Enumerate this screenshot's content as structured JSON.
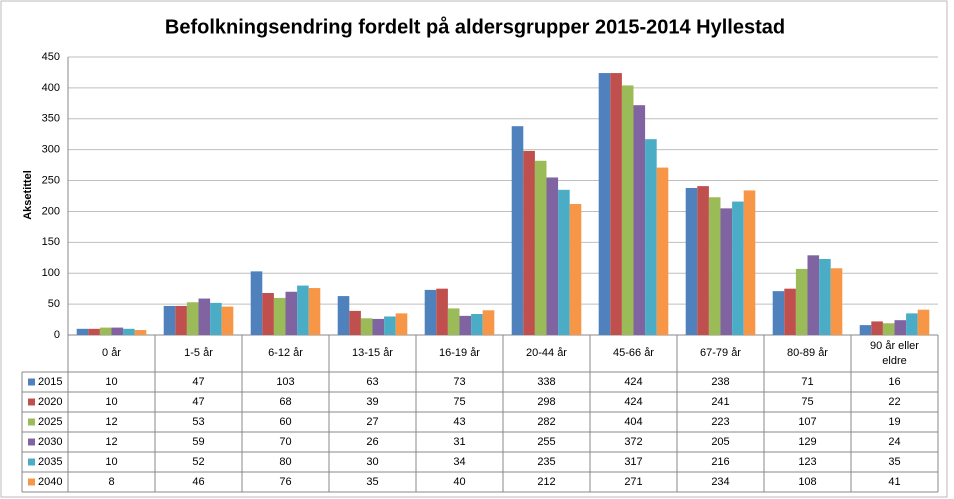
{
  "chart_data": {
    "type": "bar",
    "title": "Befolkningsendring fordelt på aldersgrupper 2015-2014 Hyllestad",
    "y_label": "Aksetittel",
    "categories": [
      "0 år",
      "1-5 år",
      "6-12 år",
      "13-15 år",
      "16-19 år",
      "20-44 år",
      "45-66 år",
      "67-79 år",
      "80-89 år",
      "90 år eller eldre"
    ],
    "series": [
      {
        "name": "2015",
        "color": "#4f81bd",
        "values": [
          10,
          47,
          103,
          63,
          73,
          338,
          424,
          238,
          71,
          16
        ]
      },
      {
        "name": "2020",
        "color": "#c0504d",
        "values": [
          10,
          47,
          68,
          39,
          75,
          298,
          424,
          241,
          75,
          22
        ]
      },
      {
        "name": "2025",
        "color": "#9bbb59",
        "values": [
          12,
          53,
          60,
          27,
          43,
          282,
          404,
          223,
          107,
          19
        ]
      },
      {
        "name": "2030",
        "color": "#8064a2",
        "values": [
          12,
          59,
          70,
          26,
          31,
          255,
          372,
          205,
          129,
          24
        ]
      },
      {
        "name": "2035",
        "color": "#4bacc6",
        "values": [
          10,
          52,
          80,
          30,
          34,
          235,
          317,
          216,
          123,
          35
        ]
      },
      {
        "name": "2040",
        "color": "#f79646",
        "values": [
          8,
          46,
          76,
          35,
          40,
          212,
          271,
          234,
          108,
          41
        ]
      }
    ],
    "ylim": [
      0,
      450
    ],
    "yticks": [
      0,
      50,
      100,
      150,
      200,
      250,
      300,
      350,
      400,
      450
    ],
    "grid": true
  }
}
